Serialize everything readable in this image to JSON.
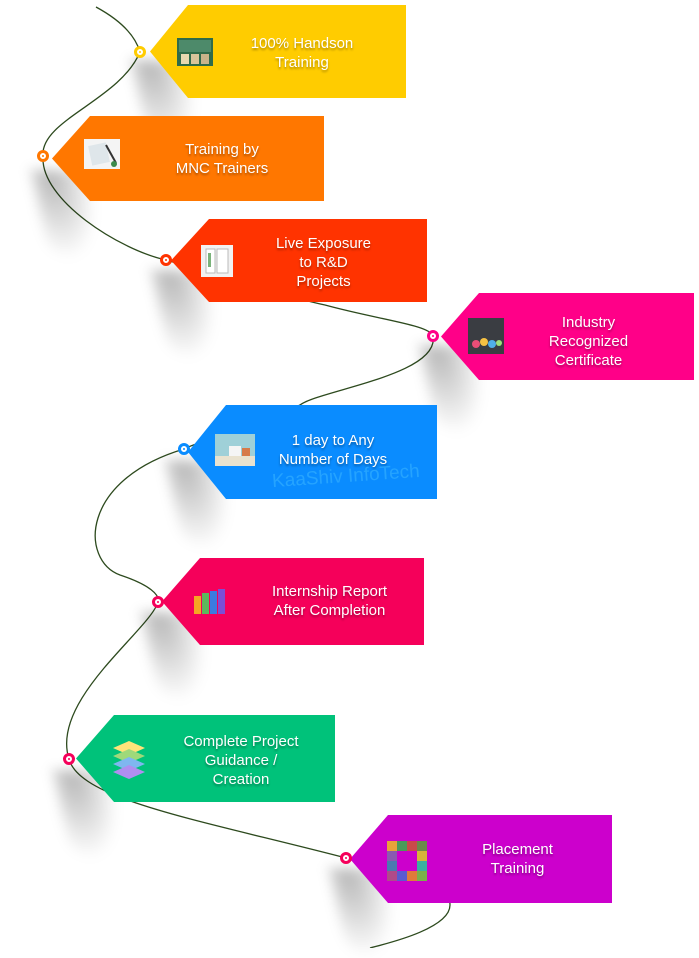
{
  "steps": [
    {
      "label": "100% Handson\nTraining",
      "color": "#FFCC00",
      "icon": "classroom-photo-icon"
    },
    {
      "label": "Training by\nMNC Trainers",
      "color": "#FF7700",
      "icon": "notebook-pen-icon"
    },
    {
      "label": "Live Exposure\nto R&D\nProjects",
      "color": "#FF3300",
      "icon": "lab-folder-icon"
    },
    {
      "label": "Industry\nRecognized\nCertificate",
      "color": "#FF0088",
      "icon": "graduates-photo-icon"
    },
    {
      "label": "1 day to Any\nNumber of Days",
      "color": "#0A8CFF",
      "icon": "desk-books-icon"
    },
    {
      "label": "Internship Report\nAfter Completion",
      "color": "#F5005A",
      "icon": "report-bars-icon"
    },
    {
      "label": "Complete Project\nGuidance /\nCreation",
      "color": "#00C27A",
      "icon": "layers-stack-icon"
    },
    {
      "label": "Placement\nTraining",
      "color": "#CC00CC",
      "icon": "puzzle-frame-icon"
    }
  ],
  "watermark": "KaaShiv InfoTech",
  "curve_color": "#2d4a1e"
}
